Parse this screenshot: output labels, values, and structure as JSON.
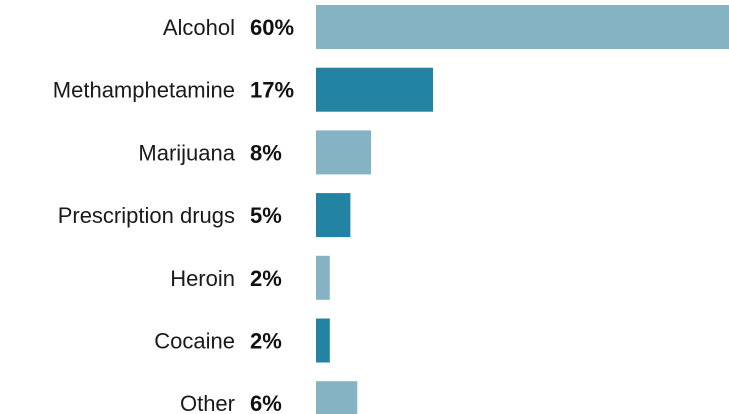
{
  "chart_data": {
    "type": "bar",
    "orientation": "horizontal",
    "title": "",
    "xlabel": "",
    "ylabel": "",
    "categories": [
      "Alcohol",
      "Methamphetamine",
      "Marijuana",
      "Prescription drugs",
      "Heroin",
      "Cocaine",
      "Other"
    ],
    "values": [
      60,
      17,
      8,
      5,
      2,
      2,
      6
    ],
    "value_labels": [
      "60%",
      "17%",
      "8%",
      "5%",
      "2%",
      "2%",
      "6%"
    ],
    "xlim": [
      0,
      60
    ],
    "grid": false,
    "legend": "none",
    "colors": {
      "light": "#86b3c4",
      "dark": "#2383a2"
    }
  }
}
